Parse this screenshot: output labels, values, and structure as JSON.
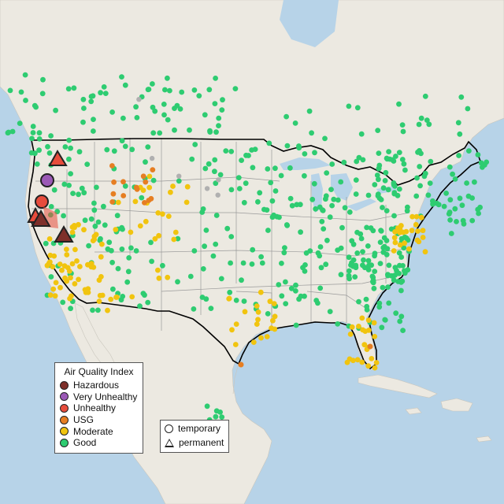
{
  "map": {
    "region": "Contiguous United States air quality monitors",
    "land_color": "#ece9e1",
    "water_color": "#b7d3e8",
    "border_color": "#000000",
    "state_line_color": "#9a9a9a"
  },
  "legend_aqi": {
    "title": "Air Quality Index",
    "items": [
      {
        "label": "Hazardous",
        "color": "#7e2f2a"
      },
      {
        "label": "Very Unhealthy",
        "color": "#9b59b6"
      },
      {
        "label": "Unhealthy",
        "color": "#e74c3c"
      },
      {
        "label": "USG",
        "color": "#e67e22"
      },
      {
        "label": "Moderate",
        "color": "#f1c40f"
      },
      {
        "label": "Good",
        "color": "#2ecc71"
      }
    ]
  },
  "legend_site": {
    "items": [
      {
        "label": "temporary",
        "shape": "circle"
      },
      {
        "label": "permanent",
        "shape": "triangle"
      }
    ]
  },
  "colors": {
    "good": "#2ecc71",
    "moderate": "#f1c40f",
    "usg": "#e67e22",
    "unhealthy": "#e74c3c",
    "very_unhealthy": "#9b59b6",
    "hazardous": "#7e2f2a",
    "unknown": "#b0b0b0"
  }
}
